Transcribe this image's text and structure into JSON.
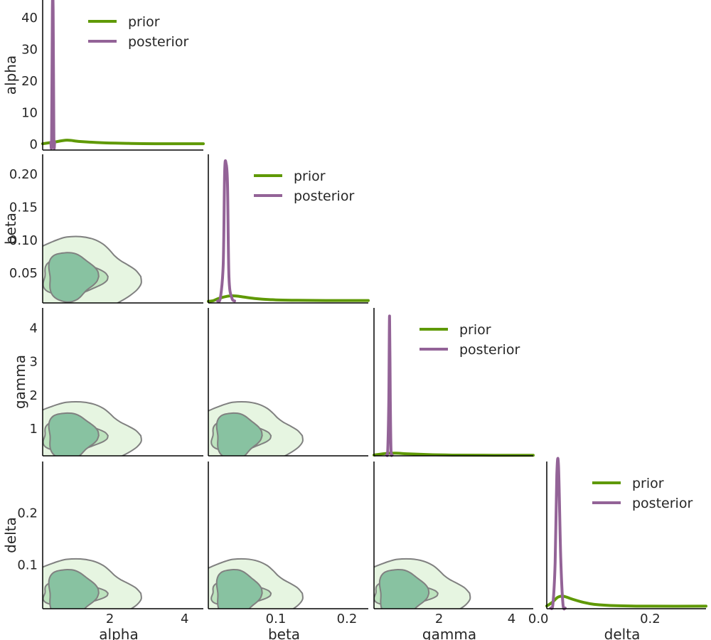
{
  "chart_data": {
    "type": "pair-plot",
    "variables": [
      "alpha",
      "beta",
      "gamma",
      "delta"
    ],
    "colors": {
      "prior": "#5f9905",
      "posterior": "#936397",
      "contour_line": "#808080",
      "contour_fill": [
        "#e6f5e1",
        "#bde3be",
        "#88c2a1"
      ]
    },
    "legend": [
      "prior",
      "posterior"
    ],
    "legend_position": "top-right of each diagonal panel",
    "axes": {
      "alpha": {
        "range": [
          0.2,
          4.5
        ],
        "ticks": [
          2,
          4
        ],
        "tick_labels": [
          "2",
          "4"
        ]
      },
      "beta": {
        "range": [
          0.005,
          0.23
        ],
        "ticks": [
          0.1,
          0.2
        ],
        "tick_labels": [
          "0.1",
          "0.2"
        ]
      },
      "gamma": {
        "range": [
          0.2,
          4.6
        ],
        "ticks": [
          2,
          4
        ],
        "tick_labels": [
          "2",
          "4"
        ]
      },
      "delta": {
        "range": [
          0.015,
          0.3
        ],
        "ticks": [
          0.0,
          0.2
        ],
        "tick_labels": [
          "0.0",
          "0.2"
        ]
      }
    },
    "row_ticks": {
      "alpha": {
        "ticks": [
          0,
          10,
          20,
          30,
          40
        ],
        "tick_labels": [
          "0",
          "10",
          "20",
          "30",
          "40"
        ],
        "range": [
          -2,
          44
        ]
      },
      "beta": {
        "ticks": [
          0.05,
          0.1,
          0.15,
          0.2
        ],
        "tick_labels": [
          "0.05",
          "0.10",
          "0.15",
          "0.20"
        ]
      },
      "gamma": {
        "ticks": [
          1,
          2,
          3,
          4
        ],
        "tick_labels": [
          "1",
          "2",
          "3",
          "4"
        ]
      },
      "delta": {
        "ticks": [
          0.1,
          0.2
        ],
        "tick_labels": [
          "0.1",
          "0.2"
        ]
      }
    },
    "diagonal": {
      "alpha": {
        "prior": {
          "x": [
            0.2,
            0.5,
            0.85,
            1.2,
            1.8,
            2.5,
            3.2,
            4.5
          ],
          "y": [
            0.0,
            0.5,
            1.1,
            0.7,
            0.3,
            0.1,
            0.0,
            0.0
          ]
        },
        "posterior": {
          "x": [
            0.42,
            0.44,
            0.46,
            0.48,
            0.5,
            0.52
          ],
          "y": [
            0.5,
            2.0,
            42.5,
            42.5,
            2.0,
            0.5
          ]
        },
        "ylim": [
          -2,
          44
        ]
      },
      "beta": {
        "prior": {
          "x": [
            0.005,
            0.012,
            0.02,
            0.032,
            0.04,
            0.05,
            0.07,
            0.1,
            0.13,
            0.17,
            0.23
          ],
          "y": [
            2.5,
            3.5,
            7.0,
            10.2,
            10.8,
            9.8,
            6.8,
            4.6,
            4.0,
            3.7,
            3.6
          ]
        },
        "posterior": {
          "x": [
            0.018,
            0.022,
            0.026,
            0.028,
            0.03,
            0.032,
            0.034,
            0.038,
            0.042
          ],
          "y": [
            3.0,
            8.0,
            60.0,
            200.0,
            212.0,
            180.0,
            40.0,
            8.0,
            3.0
          ]
        },
        "ylim": [
          0,
          220
        ]
      },
      "gamma": {
        "prior": {
          "x": [
            0.2,
            0.5,
            0.8,
            1.1,
            1.5,
            2.0,
            2.5,
            3.5,
            4.6
          ],
          "y": [
            0.2,
            0.6,
            0.7,
            0.55,
            0.4,
            0.25,
            0.18,
            0.15,
            0.15
          ]
        },
        "posterior": {
          "x": [
            0.55,
            0.58,
            0.61,
            0.63,
            0.65,
            0.67,
            0.7
          ],
          "y": [
            0.3,
            1.5,
            15.0,
            37.0,
            15.0,
            1.5,
            0.3
          ]
        },
        "ylim": [
          0,
          38
        ]
      },
      "delta": {
        "prior": {
          "x": [
            0.015,
            0.025,
            0.035,
            0.045,
            0.06,
            0.08,
            0.1,
            0.14,
            0.2,
            0.3
          ],
          "y": [
            1.2,
            2.8,
            5.0,
            5.4,
            4.2,
            2.8,
            1.9,
            1.3,
            1.1,
            1.1
          ]
        },
        "posterior": {
          "x": [
            0.022,
            0.026,
            0.03,
            0.033,
            0.036,
            0.04,
            0.044,
            0.048
          ],
          "y": [
            0.3,
            2.0,
            20.0,
            58.0,
            62.0,
            22.0,
            2.0,
            0.3
          ]
        },
        "ylim": [
          0,
          62
        ]
      }
    },
    "kde_2d": [
      {
        "row": "beta",
        "col": "alpha",
        "center": [
          0.85,
          0.045
        ],
        "extent": [
          0.6,
          0.025,
          1.3,
          0.055,
          2.1,
          0.085
        ],
        "rotation_deg": 0
      },
      {
        "row": "gamma",
        "col": "alpha",
        "center": [
          0.85,
          0.8
        ],
        "extent": [
          0.6,
          0.45,
          1.3,
          0.9,
          2.1,
          1.4
        ],
        "rotation_deg": 0
      },
      {
        "row": "gamma",
        "col": "beta",
        "center": [
          0.04,
          0.8
        ],
        "extent": [
          0.03,
          0.45,
          0.06,
          0.9,
          0.1,
          1.4
        ],
        "rotation_deg": 0
      },
      {
        "row": "delta",
        "col": "alpha",
        "center": [
          0.85,
          0.045
        ],
        "extent": [
          0.6,
          0.02,
          1.3,
          0.045,
          2.1,
          0.085
        ],
        "rotation_deg": 0
      },
      {
        "row": "delta",
        "col": "beta",
        "center": [
          0.04,
          0.045
        ],
        "extent": [
          0.03,
          0.02,
          0.06,
          0.045,
          0.1,
          0.085
        ],
        "rotation_deg": 0
      },
      {
        "row": "delta",
        "col": "gamma",
        "center": [
          0.85,
          0.045
        ],
        "extent": [
          0.6,
          0.02,
          1.3,
          0.045,
          2.1,
          0.085
        ],
        "rotation_deg": 0
      }
    ]
  }
}
